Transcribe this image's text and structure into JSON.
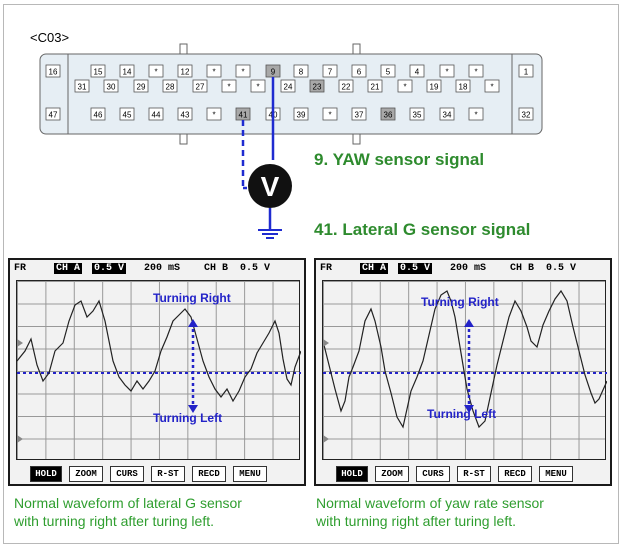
{
  "connector": {
    "label": "<C03>",
    "top_row": [
      "16",
      "15",
      "14",
      "*",
      "12",
      "*",
      "*",
      "9",
      "8",
      "7",
      "6",
      "5",
      "4",
      "*",
      "*",
      "1"
    ],
    "mid_row": [
      "31",
      "30",
      "29",
      "28",
      "27",
      "*",
      "*",
      "24",
      "23",
      "22",
      "21",
      "*",
      "19",
      "18",
      "*"
    ],
    "bottom_row": [
      "47",
      "46",
      "45",
      "44",
      "43",
      "*",
      "41",
      "40",
      "39",
      "*",
      "37",
      "36",
      "35",
      "34",
      "*",
      "32"
    ],
    "highlighted_pins": [
      "9",
      "41",
      "23",
      "36"
    ]
  },
  "meter": {
    "symbol": "V"
  },
  "signals": {
    "yaw": "9. YAW sensor signal",
    "lateral": "41. Lateral G sensor signal"
  },
  "scope_left": {
    "fr": "FR",
    "ch_a": "CH A",
    "ch_a_val": "0.5 V",
    "time": "200 mS",
    "ch_b": "CH B",
    "ch_b_val": "0.5 V",
    "turn_right": "Turning Right",
    "turn_left": "Turning Left",
    "buttons": [
      "HOLD",
      "ZOOM",
      "CURS",
      "R-ST",
      "RECD",
      "MENU"
    ]
  },
  "scope_right": {
    "fr": "FR",
    "ch_a": "CH A",
    "ch_a_val": "0.5 V",
    "time": "200 mS",
    "ch_b": "CH B",
    "ch_b_val": "0.5 V",
    "turn_right": "Turning Right",
    "turn_left": "Turning Left",
    "buttons": [
      "HOLD",
      "ZOOM",
      "CURS",
      "R-ST",
      "RECD",
      "MENU"
    ]
  },
  "captions": {
    "left_1": "Normal waveform of lateral G sensor",
    "left_2": "with turning right after turing left.",
    "right_1": "Normal waveform of yaw rate sensor",
    "right_2": "with turning right after turing left."
  },
  "colors": {
    "caption": "#2f9e2f",
    "signal": "#2e8b2e",
    "probe": "#1f2bd0",
    "pin_hl": "#a8a8a8"
  }
}
